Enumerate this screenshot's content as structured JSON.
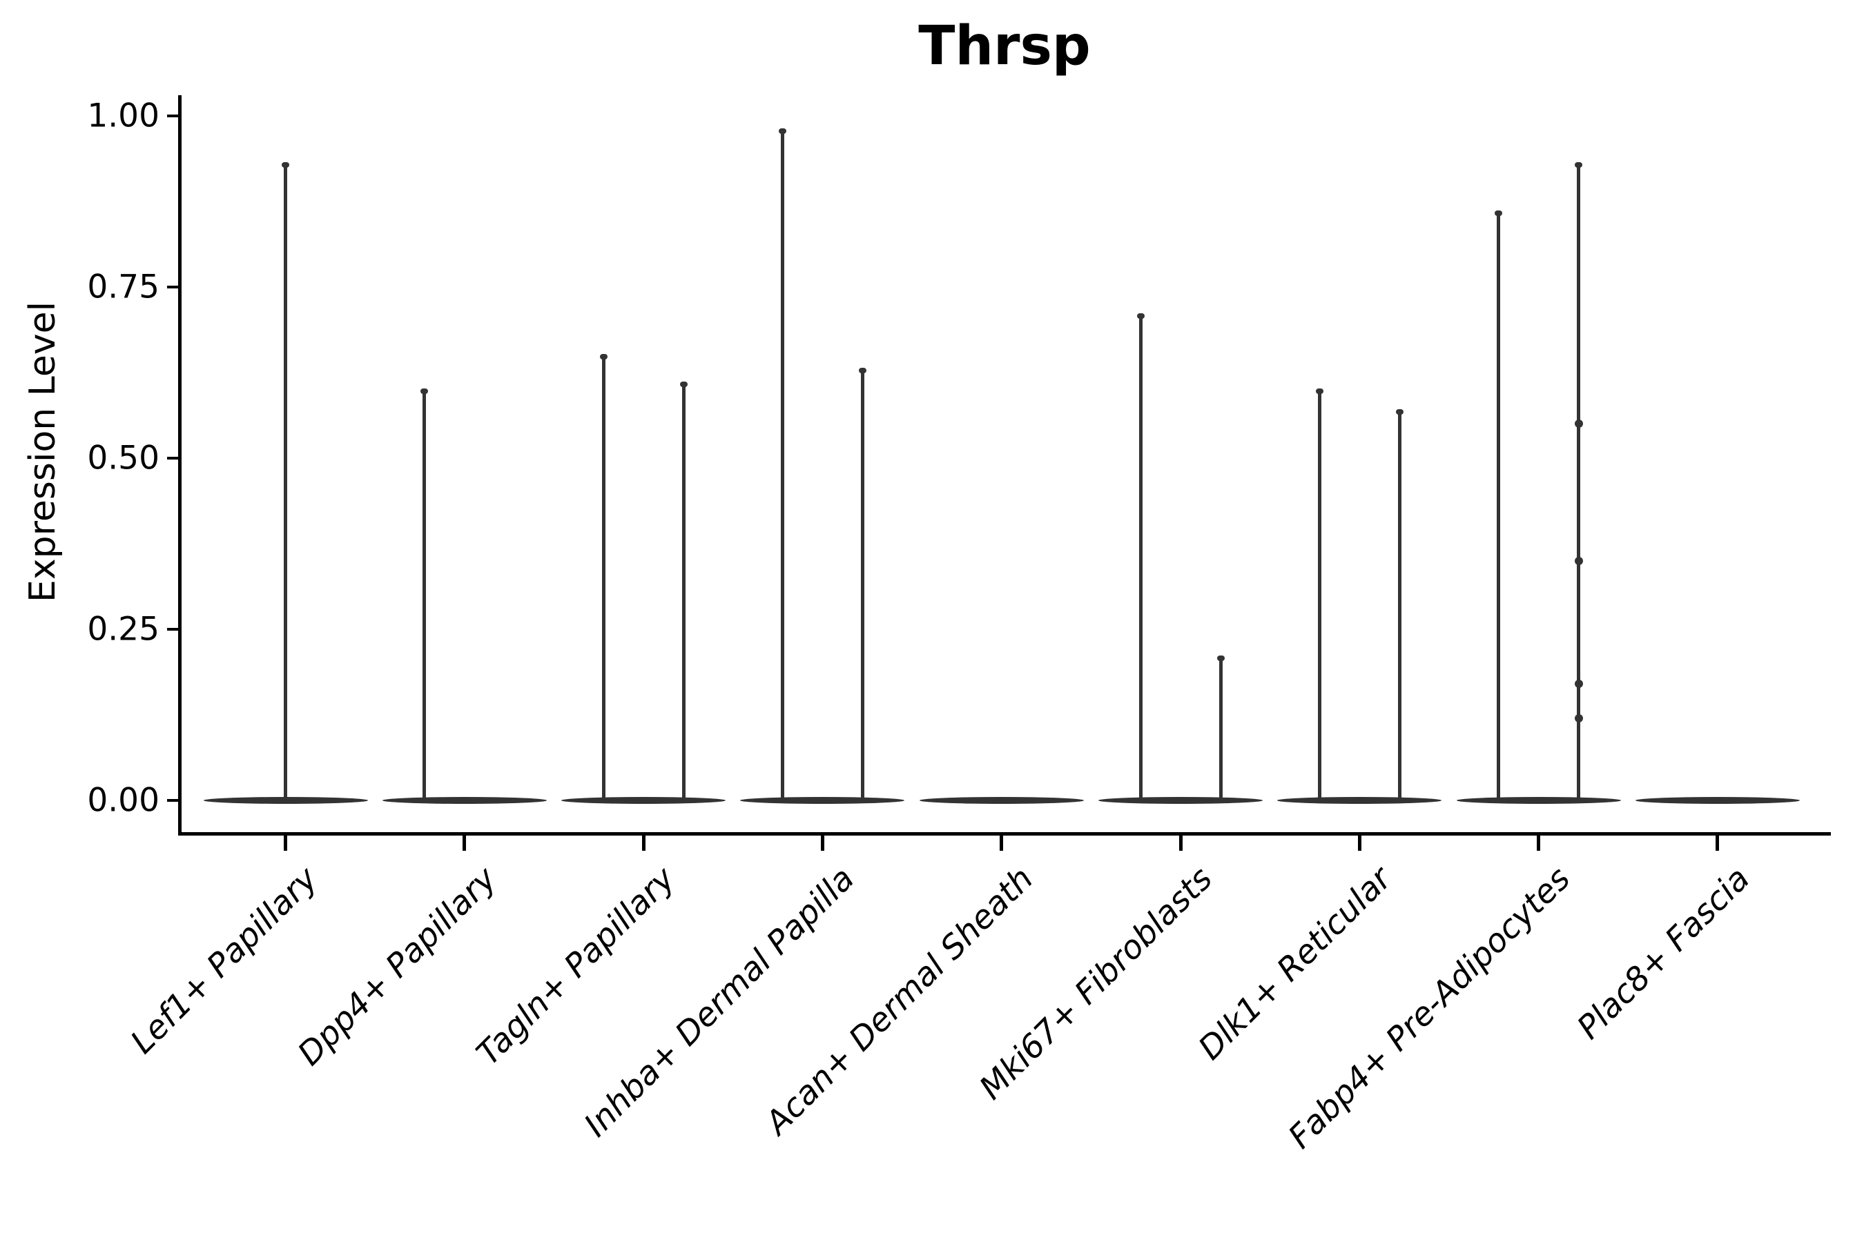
{
  "title": "Thrsp",
  "y_axis": {
    "label": "Expression Level",
    "tick_labels": [
      "1.00",
      "0.75",
      "0.50",
      "0.25",
      "0.00"
    ]
  },
  "x_axis": {
    "categories": [
      "Lef1+ Papillary",
      "Dpp4+ Papillary",
      "Tagln+ Papillary",
      "Inhba+ Dermal Papilla",
      "Acan+ Dermal Sheath",
      "Mki67+ Fibroblasts",
      "Dlk1+ Reticular",
      "Fabp4+ Pre-Adipocytes",
      "Plac8+ Fascia"
    ]
  },
  "style": {
    "violin_color": "#333333",
    "axis_color": "#000000",
    "text_color": "#000000",
    "background": "#ffffff"
  },
  "chart_data": {
    "type": "violin",
    "title": "Thrsp",
    "xlabel": "",
    "ylabel": "Expression Level",
    "ylim": [
      0,
      1.0
    ],
    "yticks": [
      1.0,
      0.75,
      0.5,
      0.25,
      0.0
    ],
    "grid": false,
    "legend": "none",
    "categories": [
      "Lef1+ Papillary",
      "Dpp4+ Papillary",
      "Tagln+ Papillary",
      "Inhba+ Dermal Papilla",
      "Acan+ Dermal Sheath",
      "Mki67+ Fibroblasts",
      "Dlk1+ Reticular",
      "Fabp4+ Pre-Adipocytes",
      "Plac8+ Fascia"
    ],
    "description": "Violin plot of Thrsp expression; most cells at 0 so each violin collapses to a flat base at 0 with thin density spikes reaching the maximum expression value. Some categories contain two side-by-side violins (left/right group positions).",
    "baseline_value": 0.0,
    "violins": [
      {
        "category": "Lef1+ Papillary",
        "spikes": [
          {
            "position": "center",
            "max": 0.93
          }
        ]
      },
      {
        "category": "Dpp4+ Papillary",
        "spikes": [
          {
            "position": "left",
            "max": 0.6
          }
        ]
      },
      {
        "category": "Tagln+ Papillary",
        "spikes": [
          {
            "position": "left",
            "max": 0.65
          },
          {
            "position": "right",
            "max": 0.61
          }
        ]
      },
      {
        "category": "Inhba+ Dermal Papilla",
        "spikes": [
          {
            "position": "left",
            "max": 0.98
          },
          {
            "position": "right",
            "max": 0.63
          }
        ]
      },
      {
        "category": "Acan+ Dermal Sheath",
        "spikes": []
      },
      {
        "category": "Mki67+ Fibroblasts",
        "spikes": [
          {
            "position": "left",
            "max": 0.71
          },
          {
            "position": "right",
            "max": 0.21
          }
        ]
      },
      {
        "category": "Dlk1+ Reticular",
        "spikes": [
          {
            "position": "left",
            "max": 0.6
          },
          {
            "position": "right",
            "max": 0.57
          }
        ]
      },
      {
        "category": "Fabp4+ Pre-Adipocytes",
        "spikes": [
          {
            "position": "left",
            "max": 0.86
          },
          {
            "position": "right",
            "max": 0.93,
            "knots": [
              0.55,
              0.35,
              0.17,
              0.12
            ]
          }
        ]
      },
      {
        "category": "Plac8+ Fascia",
        "spikes": []
      }
    ]
  }
}
